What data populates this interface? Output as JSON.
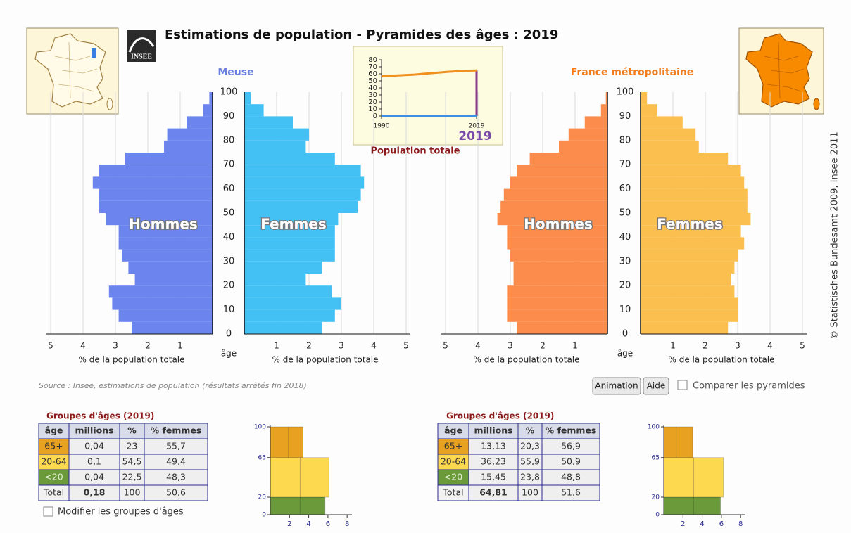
{
  "title": "Estimations de population - Pyramides des âges : 2019",
  "logo": "INSEE",
  "copyright": "© Statistisches Bundesamt 2009, Insee 2011",
  "source": "Source : Insee, estimations de population (résultats arrêtés fin 2018)",
  "buttons": [
    "Animation",
    "Aide"
  ],
  "compare_label": "Comparer les pyramides",
  "modify_label": "Modifier les groupes d'âges",
  "chart_data": [
    {
      "type": "pyramid",
      "title": "Meuse",
      "title_color": "#6a7fe0",
      "xlabel": "% de la population totale",
      "ylabel": "âge",
      "age_bins": [
        0,
        5,
        10,
        15,
        20,
        25,
        30,
        35,
        40,
        45,
        50,
        55,
        60,
        65,
        70,
        75,
        80,
        85,
        90,
        95,
        100
      ],
      "series": [
        {
          "name": "Hommes",
          "color": "#6b84ee",
          "values": [
            2.5,
            2.9,
            3.1,
            3.2,
            2.4,
            2.6,
            2.8,
            2.9,
            2.9,
            3.3,
            3.5,
            3.5,
            3.7,
            3.5,
            2.7,
            1.5,
            1.4,
            0.8,
            0.3,
            0.1
          ]
        },
        {
          "name": "Femmes",
          "color": "#44c1f4",
          "values": [
            2.4,
            2.8,
            3.0,
            2.7,
            1.9,
            2.4,
            2.8,
            2.8,
            2.8,
            2.9,
            3.5,
            3.6,
            3.7,
            3.6,
            2.8,
            1.9,
            2.0,
            1.5,
            0.6,
            0.2
          ]
        }
      ],
      "xlim": [
        0,
        5
      ],
      "xticks": [
        1,
        2,
        3,
        4,
        5
      ],
      "ylim": [
        0,
        100
      ],
      "yticks": [
        0,
        10,
        20,
        30,
        40,
        50,
        60,
        70,
        80,
        90,
        100
      ],
      "grid": true
    },
    {
      "type": "pyramid",
      "title": "France métropolitaine",
      "title_color": "#f07e20",
      "xlabel": "% de la population totale",
      "ylabel": "âge",
      "age_bins": [
        0,
        5,
        10,
        15,
        20,
        25,
        30,
        35,
        40,
        45,
        50,
        55,
        60,
        65,
        70,
        75,
        80,
        85,
        90,
        95,
        100
      ],
      "series": [
        {
          "name": "Hommes",
          "color": "#fb8c4c",
          "values": [
            2.8,
            3.1,
            3.1,
            3.1,
            2.9,
            2.9,
            3.0,
            3.1,
            3.1,
            3.4,
            3.3,
            3.2,
            3.0,
            2.8,
            2.4,
            1.5,
            1.2,
            0.7,
            0.2,
            0.05
          ]
        },
        {
          "name": "Femmes",
          "color": "#fbbf4f",
          "values": [
            2.7,
            3.0,
            3.0,
            2.9,
            2.8,
            2.9,
            3.0,
            3.2,
            3.1,
            3.4,
            3.3,
            3.3,
            3.2,
            3.1,
            2.7,
            1.8,
            1.7,
            1.3,
            0.5,
            0.2
          ]
        }
      ],
      "xlim": [
        0,
        5
      ],
      "xticks": [
        1,
        2,
        3,
        4,
        5
      ],
      "ylim": [
        0,
        100
      ],
      "yticks": [
        0,
        10,
        20,
        30,
        40,
        50,
        60,
        70,
        80,
        90,
        100
      ],
      "grid": true
    },
    {
      "type": "line",
      "title": "Population totale",
      "x": [
        1990,
        1995,
        2000,
        2005,
        2010,
        2015,
        2019
      ],
      "series": [
        {
          "color": "#f0901e",
          "values": [
            56.6,
            57.8,
            58.9,
            60.9,
            62.8,
            64.3,
            64.8
          ]
        },
        {
          "color": "#3d8fe6",
          "values": [
            0.2,
            0.19,
            0.19,
            0.19,
            0.19,
            0.19,
            0.18
          ]
        }
      ],
      "xlim": [
        1990,
        2019
      ],
      "xticks": [
        1990,
        2019
      ],
      "ylim": [
        0,
        80
      ],
      "yticks": [
        0,
        10,
        20,
        30,
        40,
        50,
        60,
        70,
        80
      ],
      "highlight": 2019,
      "highlight_color": "#8a3c8a"
    },
    {
      "type": "bar",
      "orientation": "horizontal",
      "y_edges": [
        0,
        20,
        65,
        100
      ],
      "colors": [
        "#6a9a3a",
        "#fcd94f",
        "#e9a122"
      ],
      "series": [
        {
          "values": [
            3.1,
            3.1,
            1.9
          ]
        },
        {
          "values": [
            2.6,
            3.0,
            1.5
          ]
        }
      ],
      "xlim": [
        0,
        8.5
      ],
      "xticks": [
        2,
        4,
        6,
        8
      ],
      "ylim": [
        0,
        100
      ],
      "yticks": [
        0,
        20,
        65,
        100
      ]
    },
    {
      "type": "bar",
      "orientation": "horizontal",
      "y_edges": [
        0,
        20,
        65,
        100
      ],
      "colors": [
        "#6a9a3a",
        "#fcd94f",
        "#e9a122"
      ],
      "series": [
        {
          "values": [
            3.1,
            3.1,
            1.3
          ]
        },
        {
          "values": [
            2.8,
            3.1,
            1.7
          ]
        }
      ],
      "xlim": [
        0,
        8.5
      ],
      "xticks": [
        2,
        4,
        6,
        8
      ],
      "ylim": [
        0,
        100
      ],
      "yticks": [
        0,
        20,
        65,
        100
      ]
    }
  ],
  "tables": [
    {
      "title": "Groupes d'âges (2019)",
      "header": [
        "âge",
        "millions",
        "%",
        "% femmes"
      ],
      "rows": [
        [
          "65+",
          "0,04",
          "23",
          "55,7"
        ],
        [
          "20-64",
          "0,1",
          "54,5",
          "49,4"
        ],
        [
          "<20",
          "0,04",
          "22,5",
          "48,3"
        ],
        [
          "Total",
          "0,18",
          "100",
          "50,6"
        ]
      ]
    },
    {
      "title": "Groupes d'âges (2019)",
      "header": [
        "âge",
        "millions",
        "%",
        "% femmes"
      ],
      "rows": [
        [
          "65+",
          "13,13",
          "20,3",
          "56,9"
        ],
        [
          "20-64",
          "36,23",
          "55,9",
          "50,9"
        ],
        [
          "<20",
          "15,45",
          "23,8",
          "48,8"
        ],
        [
          "Total",
          "64,81",
          "100",
          "51,6"
        ]
      ]
    }
  ]
}
